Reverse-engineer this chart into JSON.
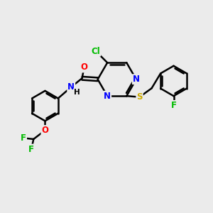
{
  "bg_color": "#ebebeb",
  "bond_color": "#000000",
  "atom_colors": {
    "Cl": "#00bb00",
    "N": "#0000ff",
    "O": "#ff0000",
    "S": "#ccaa00",
    "F": "#00bb00",
    "C": "#000000",
    "H": "#000000"
  },
  "bond_width": 1.8,
  "figsize": [
    3.0,
    3.0
  ],
  "dpi": 100,
  "xlim": [
    0,
    10
  ],
  "ylim": [
    0,
    10
  ]
}
